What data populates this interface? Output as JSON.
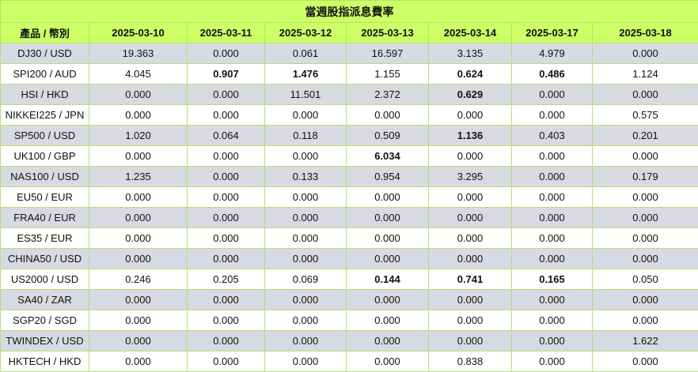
{
  "table": {
    "title": "當週股指派息費率",
    "headers": [
      "產品 / 幣別",
      "2025-03-10",
      "2025-03-11",
      "2025-03-12",
      "2025-03-13",
      "2025-03-14",
      "2025-03-17",
      "2025-03-18"
    ],
    "rows": [
      {
        "cells": [
          "DJ30 / USD",
          "19.363",
          "0.000",
          "0.061",
          "16.597",
          "3.135",
          "4.979",
          "0.000"
        ],
        "bold": []
      },
      {
        "cells": [
          "SPI200 / AUD",
          "4.045",
          "0.907",
          "1.476",
          "1.155",
          "0.624",
          "0.486",
          "1.124"
        ],
        "bold": [
          2,
          3,
          5,
          6
        ]
      },
      {
        "cells": [
          "HSI / HKD",
          "0.000",
          "0.000",
          "11.501",
          "2.372",
          "0.629",
          "0.000",
          "0.000"
        ],
        "bold": [
          5
        ]
      },
      {
        "cells": [
          "NIKKEI225 / JPN",
          "0.000",
          "0.000",
          "0.000",
          "0.000",
          "0.000",
          "0.000",
          "0.575"
        ],
        "bold": []
      },
      {
        "cells": [
          "SP500 / USD",
          "1.020",
          "0.064",
          "0.118",
          "0.509",
          "1.136",
          "0.403",
          "0.201"
        ],
        "bold": [
          5
        ]
      },
      {
        "cells": [
          "UK100 / GBP",
          "0.000",
          "0.000",
          "0.000",
          "6.034",
          "0.000",
          "0.000",
          "0.000"
        ],
        "bold": [
          4
        ]
      },
      {
        "cells": [
          "NAS100 / USD",
          "1.235",
          "0.000",
          "0.133",
          "0.954",
          "3.295",
          "0.000",
          "0.179"
        ],
        "bold": []
      },
      {
        "cells": [
          "EU50 / EUR",
          "0.000",
          "0.000",
          "0.000",
          "0.000",
          "0.000",
          "0.000",
          "0.000"
        ],
        "bold": []
      },
      {
        "cells": [
          "FRA40 / EUR",
          "0.000",
          "0.000",
          "0.000",
          "0.000",
          "0.000",
          "0.000",
          "0.000"
        ],
        "bold": []
      },
      {
        "cells": [
          "ES35 / EUR",
          "0.000",
          "0.000",
          "0.000",
          "0.000",
          "0.000",
          "0.000",
          "0.000"
        ],
        "bold": []
      },
      {
        "cells": [
          "CHINA50 / USD",
          "0.000",
          "0.000",
          "0.000",
          "0.000",
          "0.000",
          "0.000",
          "0.000"
        ],
        "bold": []
      },
      {
        "cells": [
          "US2000 / USD",
          "0.246",
          "0.205",
          "0.069",
          "0.144",
          "0.741",
          "0.165",
          "0.050"
        ],
        "bold": [
          4,
          5,
          6
        ]
      },
      {
        "cells": [
          "SA40 / ZAR",
          "0.000",
          "0.000",
          "0.000",
          "0.000",
          "0.000",
          "0.000",
          "0.000"
        ],
        "bold": []
      },
      {
        "cells": [
          "SGP20 / SGD",
          "0.000",
          "0.000",
          "0.000",
          "0.000",
          "0.000",
          "0.000",
          "0.000"
        ],
        "bold": []
      },
      {
        "cells": [
          "TWINDEX / USD",
          "0.000",
          "0.000",
          "0.000",
          "0.000",
          "0.000",
          "0.000",
          "1.622"
        ],
        "bold": []
      },
      {
        "cells": [
          "HKTECH / HKD",
          "0.000",
          "0.000",
          "0.000",
          "0.000",
          "0.838",
          "0.000",
          "0.000"
        ],
        "bold": []
      }
    ]
  },
  "colors": {
    "header_bg": "#ccff66",
    "grid_line": "#b6e070",
    "odd_row_bg": "#d9d9e3",
    "even_row_bg": "#ffffff"
  }
}
